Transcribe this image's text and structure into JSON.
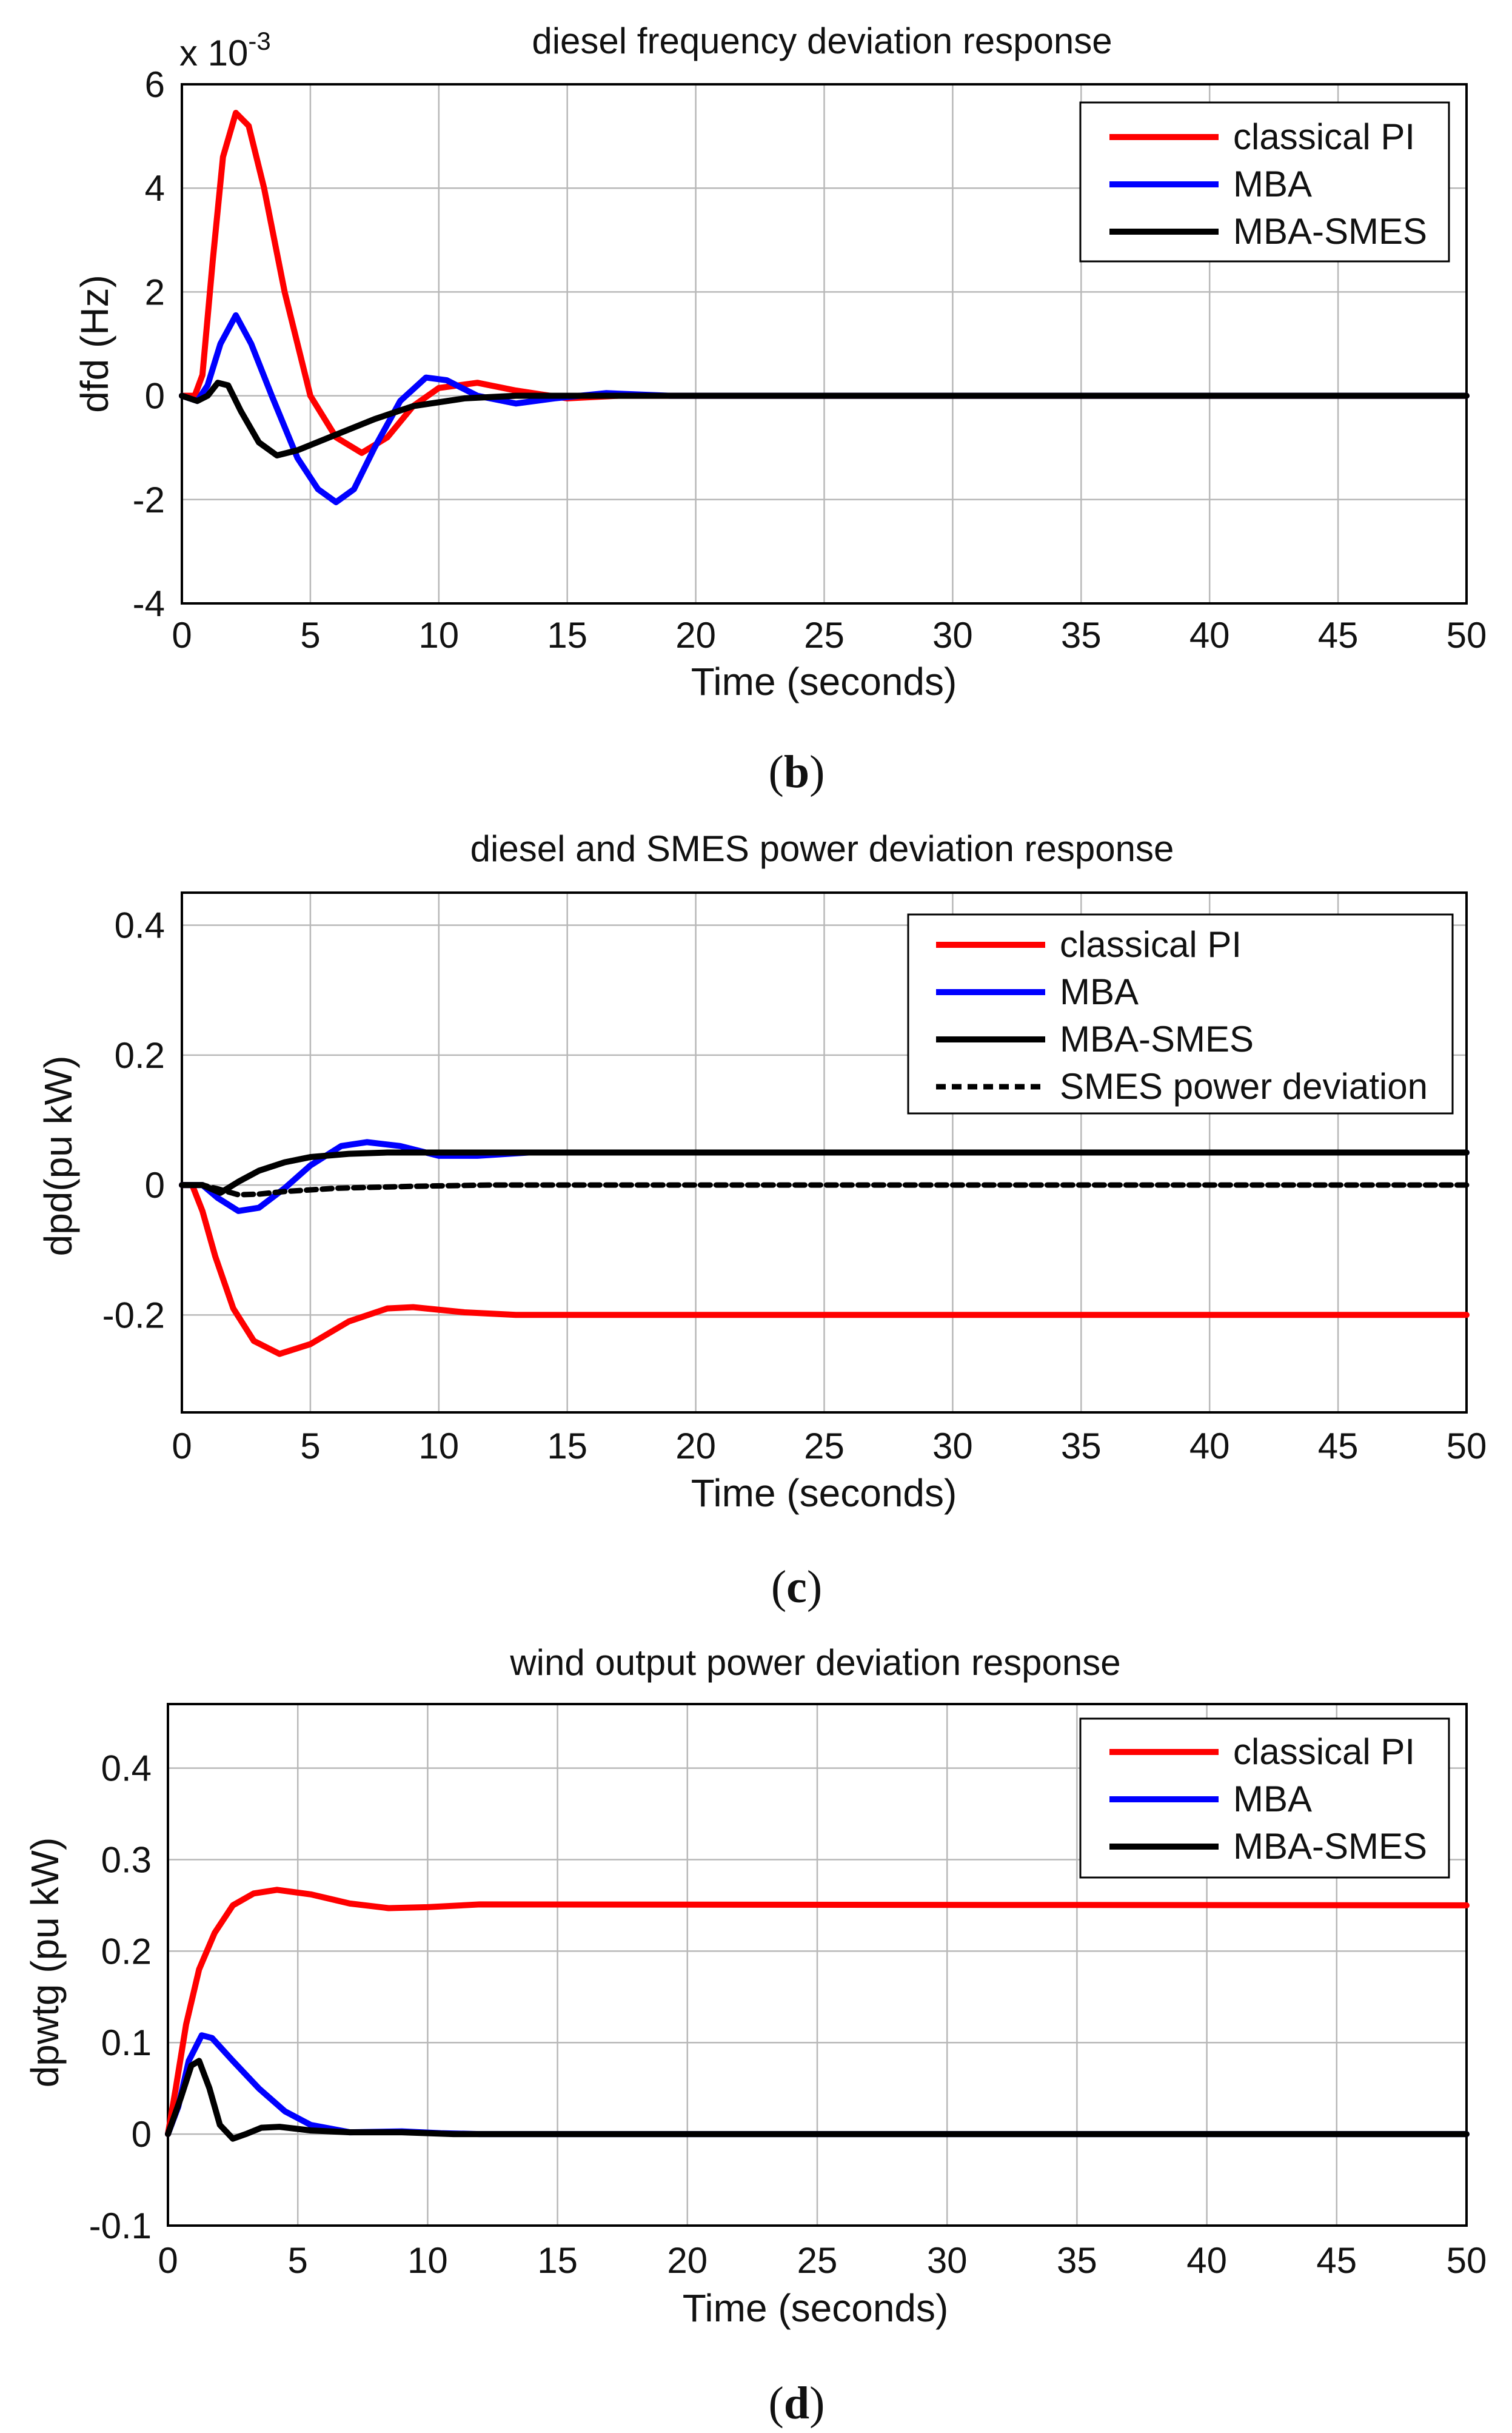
{
  "chart_data": [
    {
      "type": "line",
      "title": "diesel frequency deviation response",
      "xlabel": "Time (seconds)",
      "ylabel": "dfd (Hz)",
      "y_exponent_label": "x 10",
      "y_exponent_power": "-3",
      "xlim": [
        0,
        50
      ],
      "ylim": [
        -4,
        6
      ],
      "xticks": [
        "0",
        "5",
        "10",
        "15",
        "20",
        "25",
        "30",
        "35",
        "40",
        "45",
        "50"
      ],
      "yticks": [
        "-4",
        "-2",
        "0",
        "2",
        "4",
        "6"
      ],
      "xtick_values": [
        0,
        5,
        10,
        15,
        20,
        25,
        30,
        35,
        40,
        45,
        50
      ],
      "ytick_values": [
        -4,
        -2,
        0,
        2,
        4,
        6
      ],
      "grid": true,
      "legend_position": "top-right",
      "caption_open": "(",
      "caption_letter": "b",
      "caption_close": ")",
      "series": [
        {
          "name": "classical PI",
          "color": "#ff0000",
          "dash": "solid",
          "points": [
            [
              0,
              0
            ],
            [
              0.5,
              0
            ],
            [
              0.8,
              0.4
            ],
            [
              1.2,
              2.6
            ],
            [
              1.6,
              4.6
            ],
            [
              2.1,
              5.45
            ],
            [
              2.6,
              5.2
            ],
            [
              3.2,
              4.0
            ],
            [
              4.0,
              2.0
            ],
            [
              5.0,
              0
            ],
            [
              6.0,
              -0.8
            ],
            [
              7.0,
              -1.1
            ],
            [
              8.0,
              -0.8
            ],
            [
              9.0,
              -0.2
            ],
            [
              10.0,
              0.15
            ],
            [
              11.5,
              0.25
            ],
            [
              13.0,
              0.1
            ],
            [
              15.0,
              -0.05
            ],
            [
              17.0,
              0
            ],
            [
              20.0,
              0
            ],
            [
              25.0,
              0
            ],
            [
              50.0,
              0
            ]
          ]
        },
        {
          "name": "MBA",
          "color": "#0000ff",
          "dash": "solid",
          "points": [
            [
              0,
              0
            ],
            [
              0.6,
              -0.1
            ],
            [
              1.0,
              0.2
            ],
            [
              1.5,
              1.0
            ],
            [
              2.1,
              1.55
            ],
            [
              2.7,
              1.0
            ],
            [
              3.5,
              0
            ],
            [
              4.5,
              -1.2
            ],
            [
              5.3,
              -1.8
            ],
            [
              6.0,
              -2.05
            ],
            [
              6.7,
              -1.8
            ],
            [
              7.5,
              -1.0
            ],
            [
              8.5,
              -0.1
            ],
            [
              9.5,
              0.35
            ],
            [
              10.3,
              0.3
            ],
            [
              11.5,
              0
            ],
            [
              13.0,
              -0.15
            ],
            [
              14.5,
              -0.05
            ],
            [
              16.5,
              0.05
            ],
            [
              19.0,
              0
            ],
            [
              50.0,
              0
            ]
          ]
        },
        {
          "name": "MBA-SMES",
          "color": "#000000",
          "dash": "solid",
          "points": [
            [
              0,
              0
            ],
            [
              0.6,
              -0.1
            ],
            [
              1.0,
              0
            ],
            [
              1.4,
              0.25
            ],
            [
              1.8,
              0.2
            ],
            [
              2.3,
              -0.3
            ],
            [
              3.0,
              -0.9
            ],
            [
              3.7,
              -1.15
            ],
            [
              4.5,
              -1.05
            ],
            [
              6.0,
              -0.75
            ],
            [
              7.5,
              -0.45
            ],
            [
              9.0,
              -0.2
            ],
            [
              11.0,
              -0.05
            ],
            [
              13.0,
              0
            ],
            [
              50.0,
              0
            ]
          ]
        }
      ]
    },
    {
      "type": "line",
      "title": "diesel and SMES power deviation response",
      "xlabel": "Time (seconds)",
      "ylabel": "dpd(pu kW)",
      "xlim": [
        0,
        50
      ],
      "ylim": [
        -0.35,
        0.45
      ],
      "xticks": [
        "0",
        "5",
        "10",
        "15",
        "20",
        "25",
        "30",
        "35",
        "40",
        "45",
        "50"
      ],
      "yticks": [
        "-0.2",
        "0",
        "0.2",
        "0.4"
      ],
      "xtick_values": [
        0,
        5,
        10,
        15,
        20,
        25,
        30,
        35,
        40,
        45,
        50
      ],
      "ytick_values": [
        -0.2,
        0,
        0.2,
        0.4
      ],
      "grid": true,
      "legend_position": "top-right",
      "caption_open": "(",
      "caption_letter": "c",
      "caption_close": ")",
      "series": [
        {
          "name": "classical PI",
          "color": "#ff0000",
          "dash": "solid",
          "points": [
            [
              0,
              0
            ],
            [
              0.4,
              0
            ],
            [
              0.8,
              -0.04
            ],
            [
              1.3,
              -0.11
            ],
            [
              2.0,
              -0.19
            ],
            [
              2.8,
              -0.24
            ],
            [
              3.8,
              -0.26
            ],
            [
              5.0,
              -0.245
            ],
            [
              6.5,
              -0.21
            ],
            [
              8.0,
              -0.19
            ],
            [
              9.0,
              -0.188
            ],
            [
              11.0,
              -0.196
            ],
            [
              13.0,
              -0.2
            ],
            [
              50.0,
              -0.2
            ]
          ]
        },
        {
          "name": "MBA",
          "color": "#0000ff",
          "dash": "solid",
          "points": [
            [
              0,
              0
            ],
            [
              0.8,
              0
            ],
            [
              1.4,
              -0.02
            ],
            [
              2.2,
              -0.04
            ],
            [
              3.0,
              -0.035
            ],
            [
              4.0,
              -0.005
            ],
            [
              5.0,
              0.03
            ],
            [
              6.2,
              0.06
            ],
            [
              7.2,
              0.066
            ],
            [
              8.5,
              0.06
            ],
            [
              10.0,
              0.045
            ],
            [
              11.5,
              0.045
            ],
            [
              13.5,
              0.05
            ],
            [
              50.0,
              0.05
            ]
          ]
        },
        {
          "name": "MBA-SMES",
          "color": "#000000",
          "dash": "solid",
          "points": [
            [
              0,
              0
            ],
            [
              0.8,
              0
            ],
            [
              1.5,
              -0.012
            ],
            [
              2.2,
              0.005
            ],
            [
              3.0,
              0.022
            ],
            [
              4.0,
              0.035
            ],
            [
              5.0,
              0.043
            ],
            [
              6.5,
              0.048
            ],
            [
              8.0,
              0.05
            ],
            [
              50.0,
              0.05
            ]
          ]
        },
        {
          "name": "SMES power deviation",
          "color": "#000000",
          "dash": "dashed",
          "points": [
            [
              0,
              0
            ],
            [
              0.8,
              0
            ],
            [
              1.4,
              -0.006
            ],
            [
              2.2,
              -0.015
            ],
            [
              3.0,
              -0.014
            ],
            [
              4.0,
              -0.01
            ],
            [
              6.0,
              -0.005
            ],
            [
              9.0,
              -0.002
            ],
            [
              12.0,
              0
            ],
            [
              50.0,
              0
            ]
          ]
        }
      ]
    },
    {
      "type": "line",
      "title": "wind output power deviation response",
      "xlabel": "Time (seconds)",
      "ylabel": "dpwtg (pu kW)",
      "xlim": [
        0,
        50
      ],
      "ylim": [
        -0.1,
        0.47
      ],
      "xticks": [
        "0",
        "5",
        "10",
        "15",
        "20",
        "25",
        "30",
        "35",
        "40",
        "45",
        "50"
      ],
      "yticks": [
        "-0.1",
        "0",
        "0.1",
        "0.2",
        "0.3",
        "0.4"
      ],
      "xtick_values": [
        0,
        5,
        10,
        15,
        20,
        25,
        30,
        35,
        40,
        45,
        50
      ],
      "ytick_values": [
        -0.1,
        0,
        0.1,
        0.2,
        0.3,
        0.4
      ],
      "grid": true,
      "legend_position": "top-right",
      "caption_open": "(",
      "caption_letter": "d",
      "caption_close": ")",
      "series": [
        {
          "name": "classical PI",
          "color": "#ff0000",
          "dash": "solid",
          "points": [
            [
              0,
              0
            ],
            [
              0.3,
              0.05
            ],
            [
              0.7,
              0.12
            ],
            [
              1.2,
              0.18
            ],
            [
              1.8,
              0.22
            ],
            [
              2.5,
              0.25
            ],
            [
              3.3,
              0.263
            ],
            [
              4.2,
              0.267
            ],
            [
              5.5,
              0.262
            ],
            [
              7.0,
              0.252
            ],
            [
              8.5,
              0.247
            ],
            [
              10.0,
              0.248
            ],
            [
              12.0,
              0.251
            ],
            [
              50.0,
              0.25
            ]
          ]
        },
        {
          "name": "MBA",
          "color": "#0000ff",
          "dash": "solid",
          "points": [
            [
              0,
              0
            ],
            [
              0.4,
              0.03
            ],
            [
              0.8,
              0.08
            ],
            [
              1.3,
              0.108
            ],
            [
              1.7,
              0.105
            ],
            [
              2.5,
              0.08
            ],
            [
              3.5,
              0.05
            ],
            [
              4.5,
              0.025
            ],
            [
              5.5,
              0.01
            ],
            [
              7.0,
              0.002
            ],
            [
              9.0,
              0.003
            ],
            [
              10.5,
              0.001
            ],
            [
              12.0,
              0
            ],
            [
              50.0,
              0
            ]
          ]
        },
        {
          "name": "MBA-SMES",
          "color": "#000000",
          "dash": "solid",
          "points": [
            [
              0,
              0
            ],
            [
              0.5,
              0.04
            ],
            [
              0.9,
              0.075
            ],
            [
              1.2,
              0.08
            ],
            [
              1.6,
              0.05
            ],
            [
              2.0,
              0.01
            ],
            [
              2.5,
              -0.005
            ],
            [
              3.0,
              0.0
            ],
            [
              3.6,
              0.007
            ],
            [
              4.3,
              0.008
            ],
            [
              5.5,
              0.004
            ],
            [
              7.0,
              0.002
            ],
            [
              9.0,
              0.002
            ],
            [
              11.0,
              0
            ],
            [
              50.0,
              0
            ]
          ]
        }
      ]
    }
  ]
}
